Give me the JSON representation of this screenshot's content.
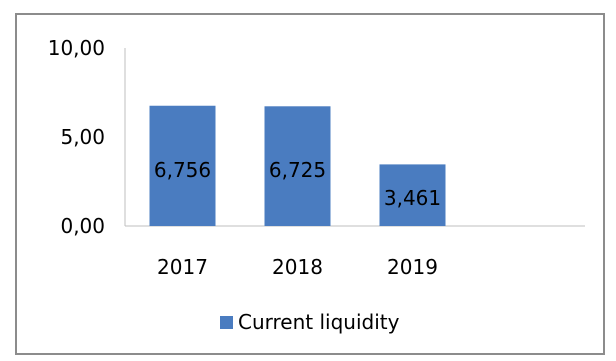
{
  "chart_data": {
    "type": "bar",
    "categories": [
      "2017",
      "2018",
      "2019"
    ],
    "series": [
      {
        "name": "Current liquidity",
        "values": [
          6.756,
          6.725,
          3.461
        ],
        "color": "#4a7cc0"
      }
    ],
    "data_labels": [
      "6,756",
      "6,725",
      "3,461"
    ],
    "y_ticks": [
      0,
      5,
      10
    ],
    "y_tick_labels": [
      "0,00",
      "5,00",
      "10,00"
    ],
    "ylim": [
      0,
      10
    ],
    "grid": false,
    "legend": {
      "position": "bottom",
      "label": "Current liquidity"
    }
  }
}
